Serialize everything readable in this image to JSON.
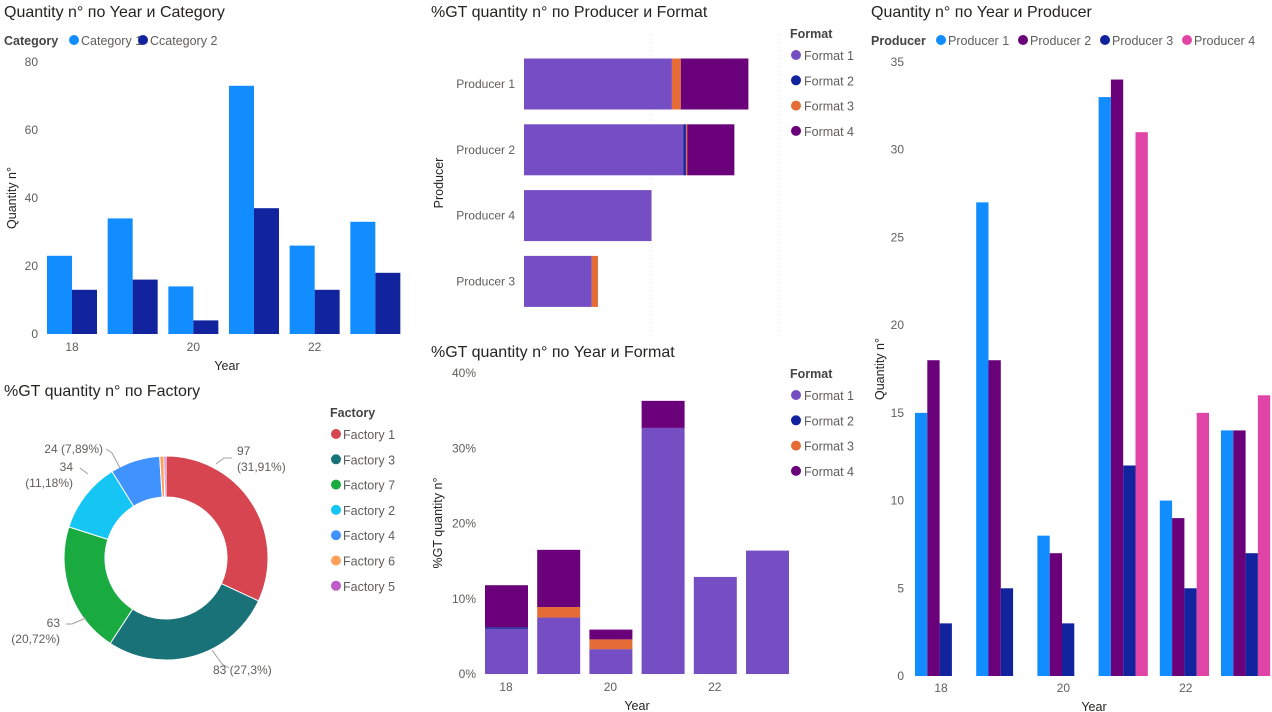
{
  "chart_data": [
    {
      "id": "c1",
      "type": "bar",
      "title": "Quantity n° по Year и Category",
      "xlabel": "Year",
      "ylabel": "Quantity n°",
      "x": [
        18,
        19,
        20,
        21,
        22,
        23
      ],
      "xticks": [
        "18",
        "20",
        "22"
      ],
      "ylim": [
        0,
        80
      ],
      "yticks": [
        0,
        20,
        40,
        60,
        80
      ],
      "legend_title": "Category",
      "legend_position": "top",
      "series": [
        {
          "name": "Category 1",
          "color": "#118DFF",
          "values": [
            23,
            34,
            14,
            73,
            26,
            33
          ]
        },
        {
          "name": "Ccategory 2",
          "color": "#12239E",
          "values": [
            13,
            16,
            4,
            37,
            13,
            18
          ]
        }
      ]
    },
    {
      "id": "c2",
      "type": "bar",
      "orientation": "horizontal",
      "stacked": true,
      "title": "%GT quantity n° по Producer и Format",
      "ylabel": "Producer",
      "categories": [
        "Producer 1",
        "Producer 2",
        "Producer 4",
        "Producer 3"
      ],
      "xlim": [
        0,
        0.2
      ],
      "grid": true,
      "legend_title": "Format",
      "legend_position": "right",
      "series": [
        {
          "name": "Format 1",
          "color": "#744EC2",
          "values": [
            0.116,
            0.125,
            0.1,
            0.053
          ]
        },
        {
          "name": "Format 2",
          "color": "#12239E",
          "values": [
            0,
            0.002,
            0,
            0
          ]
        },
        {
          "name": "Format 3",
          "color": "#E66C37",
          "values": [
            0.007,
            0.001,
            0,
            0.005
          ]
        },
        {
          "name": "Format 4",
          "color": "#6B007B",
          "values": [
            0.053,
            0.037,
            0,
            0
          ]
        }
      ]
    },
    {
      "id": "c3",
      "type": "bar",
      "title": "Quantity n° по Year и Producer",
      "xlabel": "Year",
      "ylabel": "Quantity n°",
      "x": [
        18,
        19,
        20,
        21,
        22,
        23
      ],
      "xticks": [
        "18",
        "20",
        "22"
      ],
      "ylim": [
        0,
        35
      ],
      "yticks": [
        0,
        5,
        10,
        15,
        20,
        25,
        30,
        35
      ],
      "legend_title": "Producer",
      "legend_position": "top",
      "series": [
        {
          "name": "Producer 1",
          "color": "#118DFF",
          "values": [
            15,
            27,
            8,
            33,
            10,
            14
          ]
        },
        {
          "name": "Producer 2",
          "color": "#6B007B",
          "values": [
            18,
            18,
            7,
            34,
            9,
            14
          ]
        },
        {
          "name": "Producer 3",
          "color": "#12239E",
          "values": [
            3,
            5,
            3,
            12,
            5,
            7
          ]
        },
        {
          "name": "Producer 4",
          "color": "#E044A7",
          "values": [
            0,
            0,
            0,
            31,
            15,
            16
          ]
        }
      ]
    },
    {
      "id": "c4",
      "type": "pie",
      "donut": true,
      "title": "%GT quantity n° по Factory",
      "legend_title": "Factory",
      "legend_position": "right",
      "slices": [
        {
          "name": "Factory 1",
          "color": "#D64550",
          "value": 97,
          "label": "97",
          "pct": "(31,91%)"
        },
        {
          "name": "Factory 3",
          "color": "#197278",
          "value": 83,
          "label": "83 (27,3%)",
          "pct": ""
        },
        {
          "name": "Factory 7",
          "color": "#1AAB40",
          "value": 63,
          "label": "63",
          "pct": "(20,72%)"
        },
        {
          "name": "Factory 2",
          "color": "#15C6F4",
          "value": 34,
          "label": "34",
          "pct": "(11,18%)"
        },
        {
          "name": "Factory 4",
          "color": "#4092FF",
          "value": 24,
          "label": "24 (7,89%)",
          "pct": ""
        },
        {
          "name": "Factory 6",
          "color": "#FFA058",
          "value": 2,
          "label": "",
          "pct": ""
        },
        {
          "name": "Factory 5",
          "color": "#BE5DC9",
          "value": 1,
          "label": "",
          "pct": ""
        }
      ]
    },
    {
      "id": "c5",
      "type": "bar",
      "stacked": true,
      "title": "%GT quantity n° по Year и Format",
      "xlabel": "Year",
      "ylabel": "%GT quantity n°",
      "x": [
        18,
        19,
        20,
        21,
        22,
        23
      ],
      "xticks": [
        "18",
        "20",
        "22"
      ],
      "ylim": [
        0,
        0.4
      ],
      "yticks": [
        "0%",
        "10%",
        "20%",
        "30%",
        "40%"
      ],
      "legend_title": "Format",
      "legend_position": "right",
      "series": [
        {
          "name": "Format 1",
          "color": "#744EC2",
          "values": [
            0.06,
            0.075,
            0.033,
            0.327,
            0.129,
            0.164
          ]
        },
        {
          "name": "Format 2",
          "color": "#12239E",
          "values": [
            0.002,
            0,
            0,
            0,
            0,
            0
          ]
        },
        {
          "name": "Format 3",
          "color": "#E66C37",
          "values": [
            0,
            0.014,
            0.013,
            0,
            0,
            0
          ]
        },
        {
          "name": "Format 4",
          "color": "#6B007B",
          "values": [
            0.056,
            0.076,
            0.013,
            0.036,
            0,
            0
          ]
        }
      ]
    }
  ]
}
